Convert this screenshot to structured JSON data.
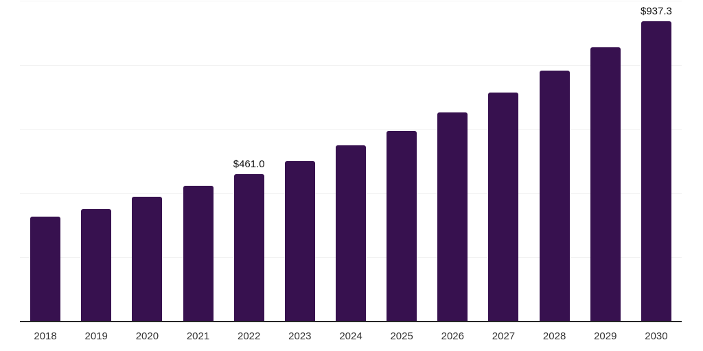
{
  "chart_data": {
    "type": "bar",
    "title": "",
    "xlabel": "",
    "ylabel": "",
    "categories": [
      "2018",
      "2019",
      "2020",
      "2021",
      "2022",
      "2023",
      "2024",
      "2025",
      "2026",
      "2027",
      "2028",
      "2029",
      "2030"
    ],
    "values": [
      329,
      353,
      390,
      425,
      461.0,
      502,
      551,
      597,
      653,
      715,
      785,
      857,
      937.3
    ],
    "point_labels": [
      "",
      "",
      "",
      "",
      "$461.0",
      "",
      "",
      "",
      "",
      "",
      "",
      "",
      "$937.3"
    ],
    "ylim": [
      0,
      1000
    ],
    "grid_step": 200,
    "grid": true,
    "legend": false,
    "bar_color": "#37114F",
    "axis_color": "#262626",
    "grid_color": "#F2F2F2",
    "label_color": "#111111",
    "tick_color": "#333333"
  }
}
